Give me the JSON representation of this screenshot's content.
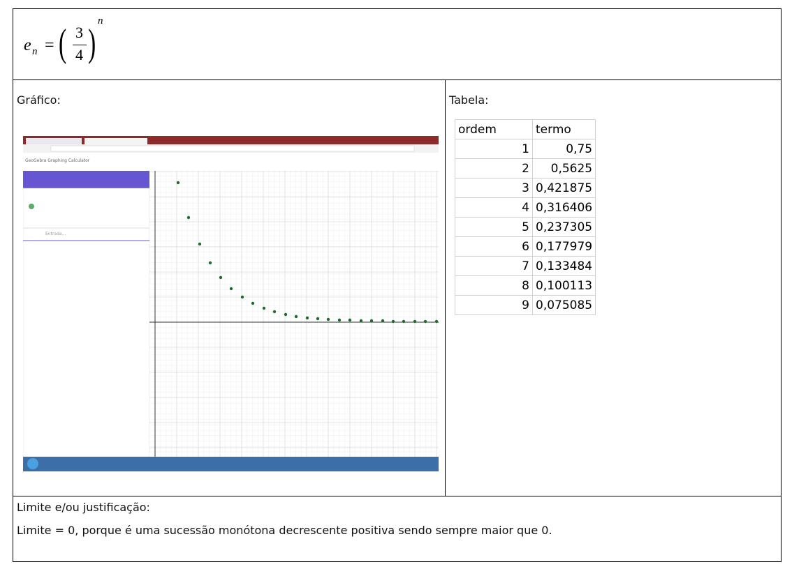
{
  "formula": {
    "lhs": "e",
    "sub": "n",
    "num": "3",
    "den": "4",
    "exp": "n"
  },
  "graph": {
    "label": "Gráfico:",
    "app_title": "GeoGebra Graphing Calculator",
    "input_placeholder": "Entrada..."
  },
  "table": {
    "label": "Tabela:",
    "header": [
      "ordem",
      "termo"
    ],
    "rows": [
      [
        "1",
        "0,75"
      ],
      [
        "2",
        "0,5625"
      ],
      [
        "3",
        "0,421875"
      ],
      [
        "4",
        "0,316406"
      ],
      [
        "5",
        "0,237305"
      ],
      [
        "6",
        "0,177979"
      ],
      [
        "7",
        "0,133484"
      ],
      [
        "8",
        "0,100113"
      ],
      [
        "9",
        "0,075085"
      ]
    ]
  },
  "conclusion": {
    "label": "Limite e/ou justificação:",
    "text": "Limite = 0, porque é uma sucessão monótona decrescente positiva sendo sempre maior que 0."
  }
}
